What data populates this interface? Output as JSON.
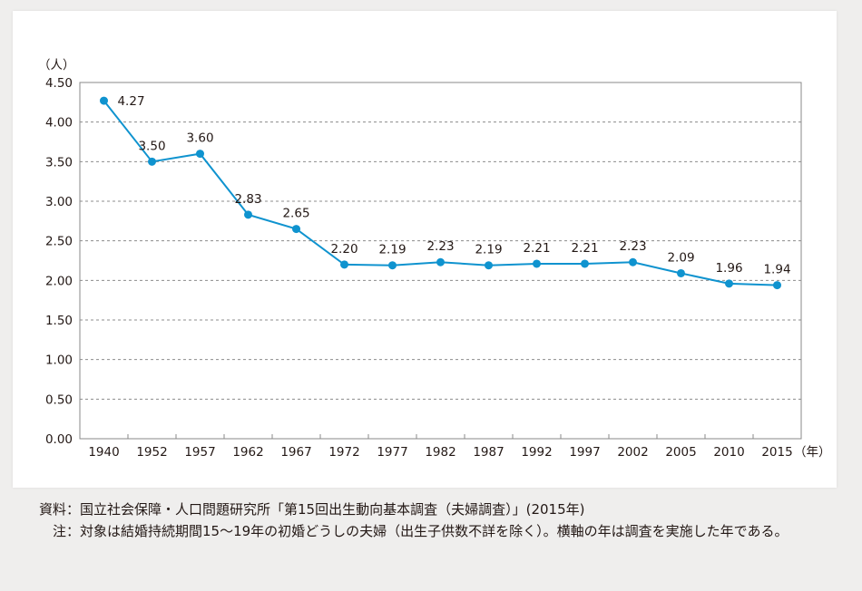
{
  "chart_data": {
    "type": "line",
    "title": "",
    "ylabel": "（人）",
    "xlabel": "（年）",
    "ylim": [
      0,
      4.5
    ],
    "yticks": [
      "0.00",
      "0.50",
      "1.00",
      "1.50",
      "2.00",
      "2.50",
      "3.00",
      "3.50",
      "4.00",
      "4.50"
    ],
    "grid": "horizontal dashed",
    "categories": [
      "1940",
      "1952",
      "1957",
      "1962",
      "1967",
      "1972",
      "1977",
      "1982",
      "1987",
      "1992",
      "1997",
      "2002",
      "2005",
      "2010",
      "2015"
    ],
    "values": [
      4.27,
      3.5,
      3.6,
      2.83,
      2.65,
      2.2,
      2.19,
      2.23,
      2.19,
      2.21,
      2.21,
      2.23,
      2.09,
      1.96,
      1.94
    ],
    "labels": [
      "4.27",
      "3.50",
      "3.60",
      "2.83",
      "2.65",
      "2.20",
      "2.19",
      "2.23",
      "2.19",
      "2.21",
      "2.21",
      "2.23",
      "2.09",
      "1.96",
      "1.94"
    ],
    "color": "#0f93cf"
  },
  "notes": {
    "source_label": "資料：",
    "source_text": "国立社会保障・人口問題研究所「第15回出生動向基本調査（夫婦調査）」(2015年)",
    "note_label": "注：",
    "note_text": "対象は結婚持続期間15～19年の初婚どうしの夫婦（出生子供数不詳を除く）。横軸の年は調査を実施した年である。"
  }
}
